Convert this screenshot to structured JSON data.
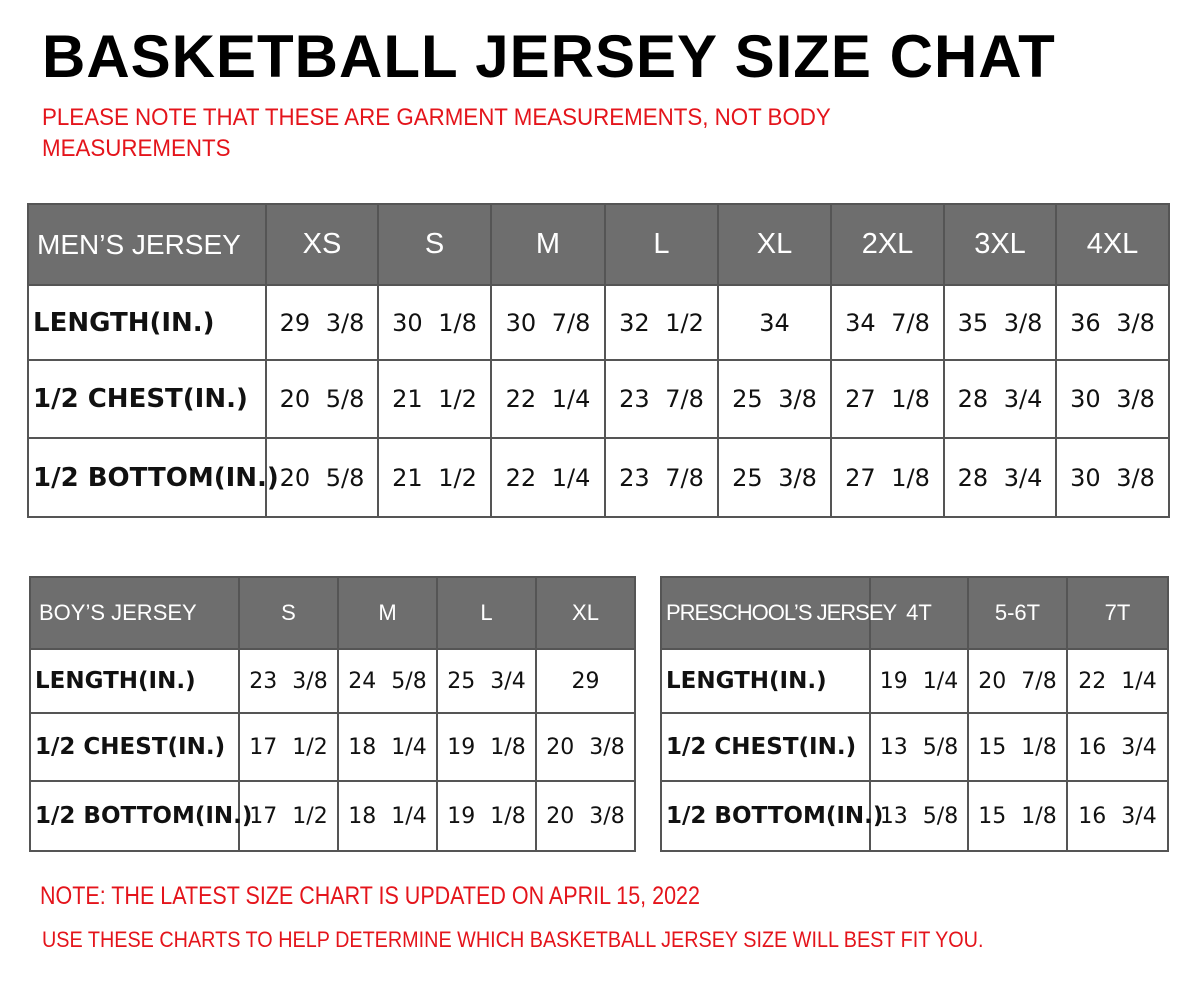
{
  "title": "BASKETBALL JERSEY SIZE CHAT",
  "subtitle": "PLEASE NOTE THAT THESE ARE GARMENT MEASUREMENTS, NOT BODY MEASUREMENTS",
  "colors": {
    "header_bg": "#6e6e6e",
    "note_red": "#e4141b"
  },
  "tables": [
    {
      "id": "mens",
      "label": "MEN’S JERSEY",
      "sizes": [
        "XS",
        "S",
        "M",
        "L",
        "XL",
        "2XL",
        "3XL",
        "4XL"
      ],
      "rows": [
        {
          "label": "LENGTH(IN.)",
          "values": [
            "29 3/8",
            "30 1/8",
            "30 7/8",
            "32 1/2",
            "34",
            "34 7/8",
            "35 3/8",
            "36 3/8"
          ]
        },
        {
          "label": "1/2 CHEST(IN.)",
          "values": [
            "20 5/8",
            "21 1/2",
            "22 1/4",
            "23 7/8",
            "25 3/8",
            "27 1/8",
            "28 3/4",
            "30 3/8"
          ]
        },
        {
          "label": "1/2 BOTTOM(IN.)",
          "values": [
            "20 5/8",
            "21 1/2",
            "22 1/4",
            "23 7/8",
            "25 3/8",
            "27 1/8",
            "28 3/4",
            "30 3/8"
          ]
        }
      ]
    },
    {
      "id": "boys",
      "label": "BOY’S JERSEY",
      "sizes": [
        "S",
        "M",
        "L",
        "XL"
      ],
      "rows": [
        {
          "label": "LENGTH(IN.)",
          "values": [
            "23 3/8",
            "24 5/8",
            "25 3/4",
            "29"
          ]
        },
        {
          "label": "1/2 CHEST(IN.)",
          "values": [
            "17 1/2",
            "18 1/4",
            "19 1/8",
            "20 3/8"
          ]
        },
        {
          "label": "1/2 BOTTOM(IN.)",
          "values": [
            "17 1/2",
            "18 1/4",
            "19 1/8",
            "20 3/8"
          ]
        }
      ]
    },
    {
      "id": "pre",
      "label": "PRESCHOOL’S JERSEY",
      "sizes": [
        "4T",
        "5-6T",
        "7T"
      ],
      "rows": [
        {
          "label": "LENGTH(IN.)",
          "values": [
            "19 1/4",
            "20 7/8",
            "22 1/4"
          ]
        },
        {
          "label": "1/2 CHEST(IN.)",
          "values": [
            "13 5/8",
            "15 1/8",
            "16 3/4"
          ]
        },
        {
          "label": "1/2 BOTTOM(IN.)",
          "values": [
            "13 5/8",
            "15 1/8",
            "16 3/4"
          ]
        }
      ]
    }
  ],
  "notes": {
    "updated": "NOTE: THE LATEST SIZE CHART IS UPDATED ON APRIL 15, 2022",
    "usage": "USE THESE CHARTS TO HELP DETERMINE WHICH  BASKETBALL JERSEY  SIZE WILL BEST FIT YOU."
  }
}
